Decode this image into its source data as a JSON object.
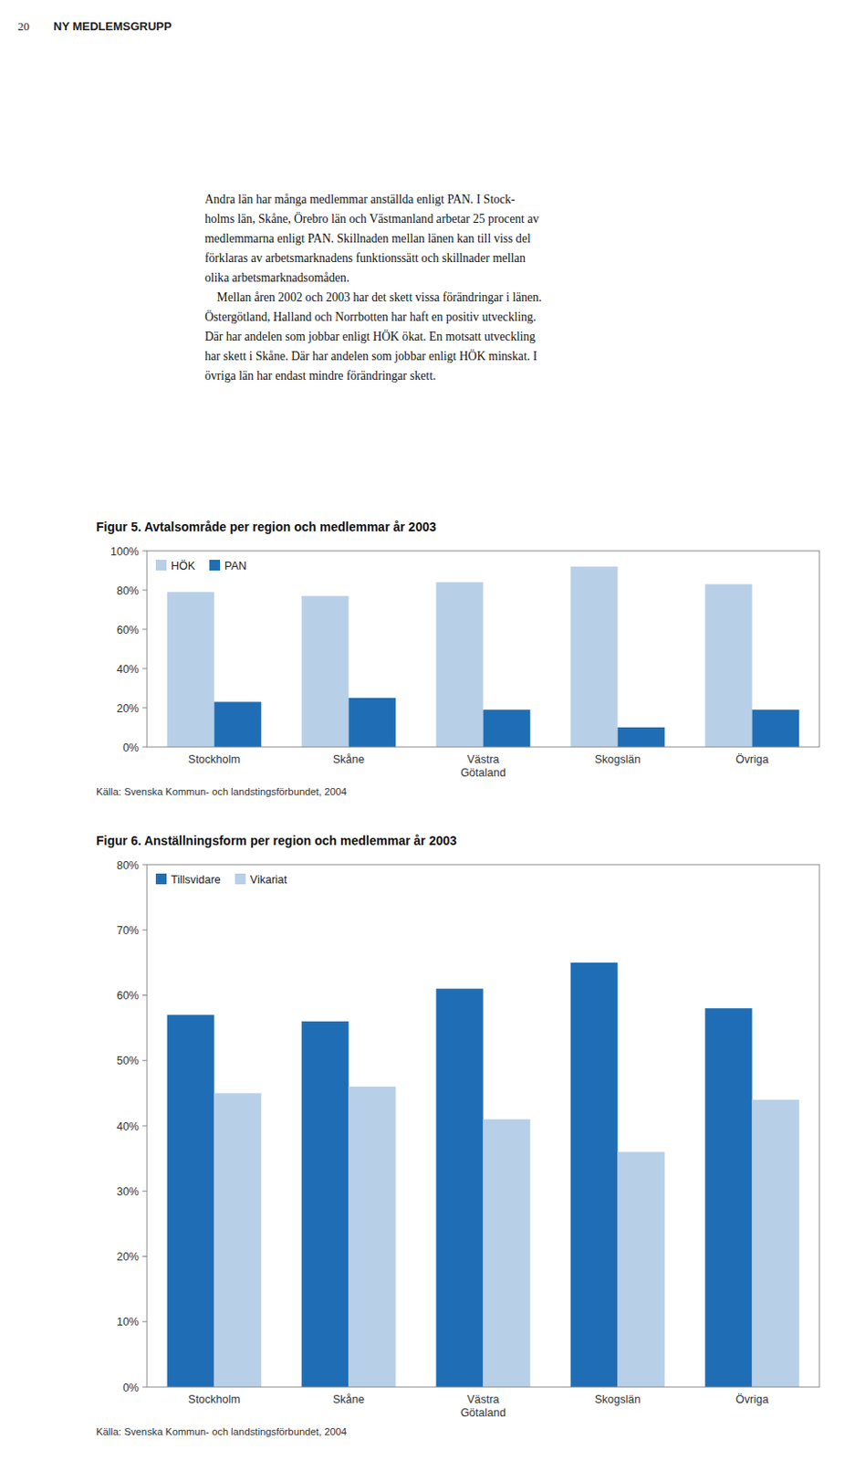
{
  "page": {
    "header_number": "20",
    "header_title": "NY MEDLEMSGRUPP",
    "body_text": [
      "Andra län har många medlemmar anställda enligt PAN. I Stock-",
      "holms län, Skåne, Örebro län och Västmanland arbetar 25 procent av",
      "medlemmarna enligt PAN. Skillnaden mellan länen kan till viss del",
      "förklaras av arbetsmarknadens funktionssätt och skillnader mellan",
      "olika arbetsmarknadsomåden.",
      "    Mellan åren 2002 och 2003 har det skett vissa förändringar i länen.",
      "Östergötland, Halland och Norrbotten har haft en positiv utveckling.",
      "Där har andelen som jobbar enligt HÖK ökat. En motsatt utveckling",
      "har skett i Skåne. Där har andelen som jobbar enligt HÖK minskat. I",
      "övriga län har endast mindre förändringar skett."
    ]
  },
  "chart_data": [
    {
      "type": "bar",
      "title": "Figur 5. Avtalsområde per region och medlemmar år 2003",
      "categories": [
        "Stockholm",
        "Skåne",
        "Västra\nGötaland",
        "Skogslän",
        "Övriga"
      ],
      "series": [
        {
          "name": "HÖK",
          "color": "#b8cfe8",
          "values": [
            79,
            77,
            84,
            92,
            83
          ]
        },
        {
          "name": "PAN",
          "color": "#1f6eb5",
          "values": [
            23,
            25,
            19,
            10,
            19
          ]
        }
      ],
      "ylim": [
        0,
        100
      ],
      "yticks": [
        {
          "value": 0,
          "label": "0%"
        },
        {
          "value": 20,
          "label": "20%"
        },
        {
          "value": 40,
          "label": "40%"
        },
        {
          "value": 60,
          "label": "60%"
        },
        {
          "value": 80,
          "label": "80%"
        },
        {
          "value": 100,
          "label": "100%"
        }
      ],
      "grid": false,
      "legend": "upper left",
      "source": "Källa: Svenska Kommun- och landstingsförbundet, 2004"
    },
    {
      "type": "bar",
      "title": "Figur 6. Anställningsform per region och medlemmar år 2003",
      "categories": [
        "Stockholm",
        "Skåne",
        "Västra\nGötaland",
        "Skogslän",
        "Övriga"
      ],
      "series": [
        {
          "name": "Tillsvidare",
          "color": "#1f6eb5",
          "values": [
            57,
            56,
            61,
            65,
            58
          ]
        },
        {
          "name": "Vikariat",
          "color": "#b8cfe8",
          "values": [
            45,
            46,
            41,
            36,
            44
          ]
        }
      ],
      "ylim": [
        0,
        80
      ],
      "yticks": [
        {
          "value": 0,
          "label": "0%"
        },
        {
          "value": 10,
          "label": "10%"
        },
        {
          "value": 20,
          "label": "20%"
        },
        {
          "value": 30,
          "label": "30%"
        },
        {
          "value": 40,
          "label": "40%"
        },
        {
          "value": 50,
          "label": "50%"
        },
        {
          "value": 60,
          "label": "60%"
        },
        {
          "value": 70,
          "label": "70%"
        },
        {
          "value": 80,
          "label": "80%"
        }
      ],
      "grid": false,
      "legend": "upper left",
      "source": "Källa: Svenska Kommun- och landstingsförbundet, 2004"
    }
  ]
}
